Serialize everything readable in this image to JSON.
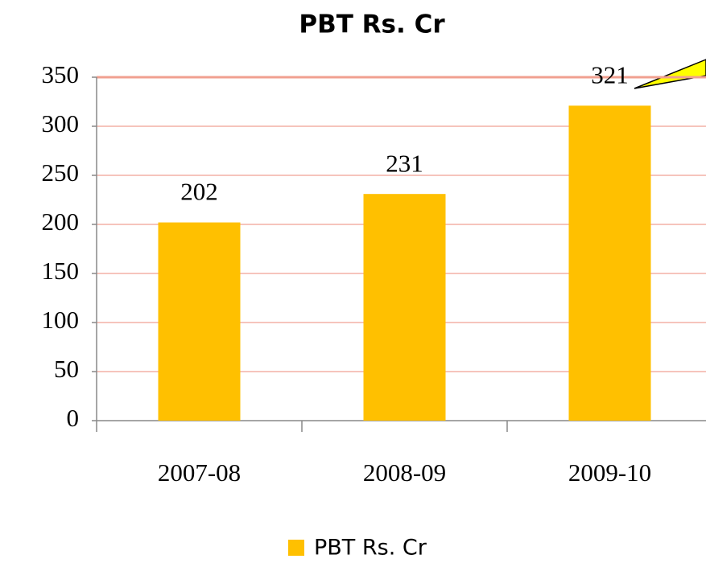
{
  "chart_data": {
    "type": "bar",
    "title": "PBT Rs. Cr",
    "categories": [
      "2007-08",
      "2008-09",
      "2009-10"
    ],
    "series": [
      {
        "name": "PBT Rs. Cr",
        "color": "#ffc000",
        "values": [
          202,
          231,
          321
        ]
      }
    ],
    "ylim": [
      0,
      350
    ],
    "yticks": [
      0,
      50,
      100,
      150,
      200,
      250,
      300,
      350
    ],
    "grid": true,
    "legend": "bottom"
  }
}
